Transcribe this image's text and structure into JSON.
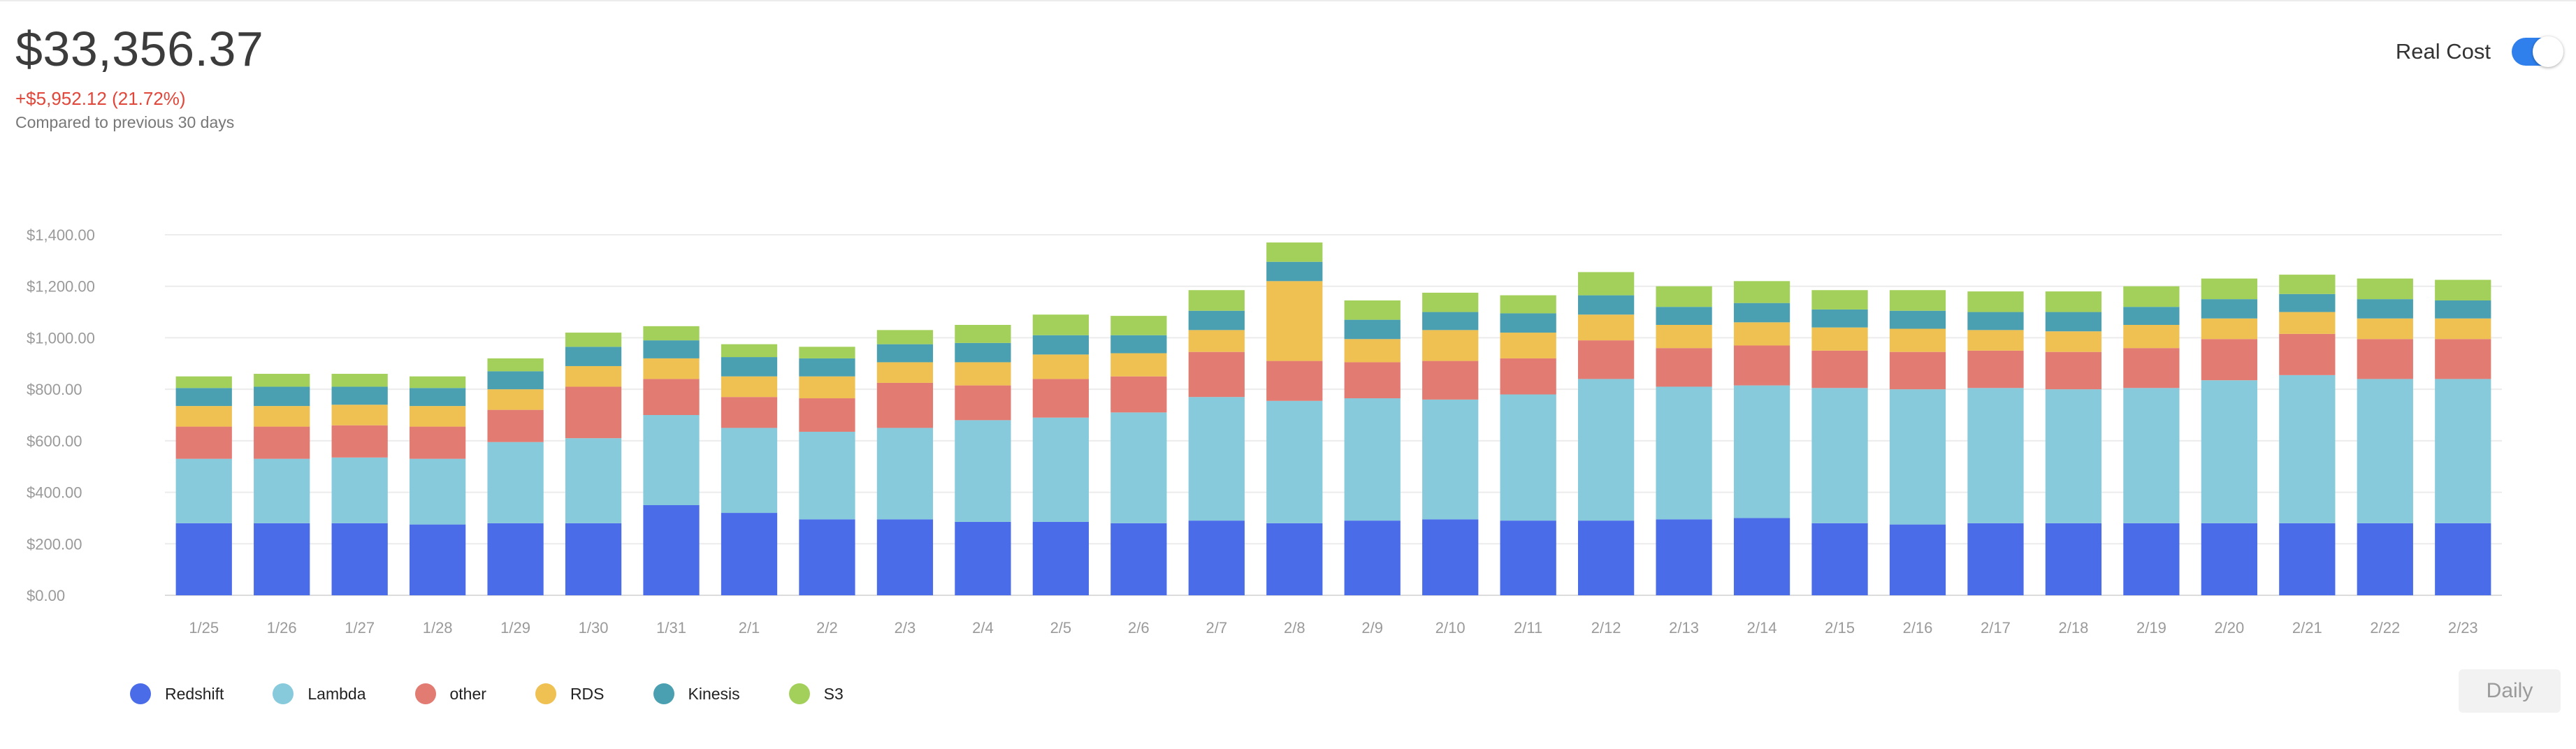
{
  "summary": {
    "total": "$33,356.37",
    "delta": "+$5,952.12 (21.72%)",
    "comparison": "Compared to previous 30 days"
  },
  "toggle": {
    "label": "Real Cost",
    "on": true
  },
  "period_button": {
    "label": "Daily"
  },
  "colors": {
    "Redshift": "#4a6ce9",
    "Lambda": "#86cadb",
    "other": "#e27b72",
    "RDS": "#efc052",
    "Kinesis": "#4aa0b0",
    "S3": "#a3d05a"
  },
  "chart_data": {
    "type": "bar",
    "stacked": true,
    "ylim": [
      0,
      1400
    ],
    "yticks": [
      "$0.00",
      "$200.00",
      "$400.00",
      "$600.00",
      "$800.00",
      "$1,000.00",
      "$1,200.00",
      "$1,400.00"
    ],
    "grid": true,
    "legend_position": "bottom-left",
    "categories": [
      "1/25",
      "1/26",
      "1/27",
      "1/28",
      "1/29",
      "1/30",
      "1/31",
      "2/1",
      "2/2",
      "2/3",
      "2/4",
      "2/5",
      "2/6",
      "2/7",
      "2/8",
      "2/9",
      "2/10",
      "2/11",
      "2/12",
      "2/13",
      "2/14",
      "2/15",
      "2/16",
      "2/17",
      "2/18",
      "2/19",
      "2/20",
      "2/21",
      "2/22",
      "2/23"
    ],
    "series": [
      {
        "name": "Redshift",
        "values": [
          280,
          280,
          280,
          275,
          280,
          280,
          350,
          320,
          295,
          295,
          285,
          285,
          280,
          290,
          280,
          290,
          295,
          290,
          290,
          295,
          300,
          280,
          275,
          280,
          280,
          280,
          280,
          280,
          280,
          280
        ]
      },
      {
        "name": "Lambda",
        "values": [
          250,
          250,
          255,
          255,
          315,
          330,
          350,
          330,
          340,
          355,
          395,
          405,
          430,
          480,
          475,
          475,
          465,
          490,
          550,
          515,
          515,
          525,
          525,
          525,
          520,
          525,
          555,
          575,
          560,
          560
        ]
      },
      {
        "name": "other",
        "values": [
          125,
          125,
          125,
          125,
          125,
          200,
          140,
          120,
          130,
          175,
          135,
          150,
          140,
          175,
          155,
          140,
          150,
          140,
          150,
          150,
          155,
          145,
          145,
          145,
          145,
          155,
          160,
          160,
          155,
          155
        ]
      },
      {
        "name": "RDS",
        "values": [
          80,
          80,
          80,
          80,
          80,
          80,
          80,
          80,
          85,
          80,
          90,
          95,
          90,
          85,
          310,
          90,
          120,
          100,
          100,
          90,
          90,
          90,
          90,
          80,
          80,
          90,
          80,
          85,
          80,
          80
        ]
      },
      {
        "name": "Kinesis",
        "values": [
          70,
          75,
          70,
          70,
          70,
          75,
          70,
          75,
          70,
          70,
          75,
          75,
          70,
          75,
          75,
          75,
          70,
          75,
          75,
          70,
          75,
          70,
          70,
          70,
          75,
          70,
          75,
          70,
          75,
          70
        ]
      },
      {
        "name": "S3",
        "values": [
          45,
          50,
          50,
          45,
          50,
          55,
          55,
          50,
          45,
          55,
          70,
          80,
          75,
          80,
          75,
          75,
          75,
          70,
          90,
          80,
          85,
          75,
          80,
          80,
          80,
          80,
          80,
          75,
          80,
          80
        ]
      }
    ]
  }
}
